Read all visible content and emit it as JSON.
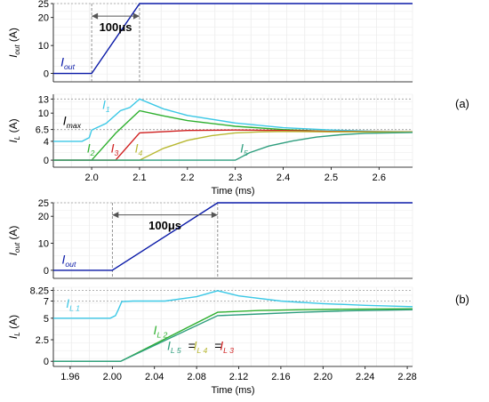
{
  "panel_labels": [
    "(a)",
    "(b)"
  ],
  "chart_data": [
    {
      "type": "line",
      "panel": "(a)",
      "subplot": "top",
      "ylabel": {
        "base": "I",
        "sub": "out",
        "unit": "(A)"
      },
      "ylim": [
        -3,
        25
      ],
      "yticks": [
        0,
        10,
        20,
        25
      ],
      "xlim": [
        1.92,
        2.67
      ],
      "grid": true,
      "series": [
        {
          "name": "I_out",
          "color": "#0a1aa8",
          "x": [
            1.92,
            2.0,
            2.1,
            2.67
          ],
          "y": [
            0,
            0,
            25,
            25
          ]
        }
      ],
      "label_parts": [
        {
          "base": "I",
          "sub": "out",
          "color": "#0a1aa8",
          "x": 1.935,
          "y": 2.5
        }
      ],
      "annotation": {
        "text": "100μs",
        "x0": 2.0,
        "x1": 2.1,
        "y": 20.5,
        "text_y": 15.2
      },
      "vlines": [
        2.0,
        2.1
      ],
      "hline": 25
    },
    {
      "type": "line",
      "panel": "(a)",
      "subplot": "bottom",
      "ylabel": {
        "base": "I",
        "sub": "L",
        "unit": "(A)"
      },
      "ylim": [
        -1.5,
        14
      ],
      "yticks": [
        0,
        4,
        6.5,
        10,
        13
      ],
      "ytick_labels": [
        "0",
        "4",
        "6.5",
        "10",
        "13"
      ],
      "xlabel": "Time (ms)",
      "xlim": [
        1.92,
        2.67
      ],
      "xticks": [
        2.0,
        2.1,
        2.2,
        2.3,
        2.4,
        2.5,
        2.6
      ],
      "xtick_labels": [
        "2.0",
        "2.1",
        "2.2",
        "2.3",
        "2.4",
        "2.5",
        "2.6"
      ],
      "grid": true,
      "hlines": [
        13,
        6.5
      ],
      "series": [
        {
          "name": "I_1",
          "color": "#3cc8e6",
          "x": [
            1.92,
            1.98,
            1.995,
            2.0,
            2.03,
            2.06,
            2.08,
            2.1,
            2.15,
            2.2,
            2.3,
            2.4,
            2.5,
            2.6,
            2.67
          ],
          "y": [
            4.0,
            4.0,
            4.8,
            6.4,
            7.8,
            10.5,
            11.2,
            13.0,
            10.9,
            9.5,
            7.9,
            6.9,
            6.4,
            6.1,
            6.0
          ]
        },
        {
          "name": "I_2",
          "color": "#2fb02f",
          "x": [
            1.92,
            2.0,
            2.05,
            2.1,
            2.15,
            2.2,
            2.3,
            2.4,
            2.5,
            2.6,
            2.67
          ],
          "y": [
            0,
            0,
            5.7,
            10.5,
            9.4,
            8.4,
            7.2,
            6.5,
            6.1,
            6.0,
            6.0
          ]
        },
        {
          "name": "I_3",
          "color": "#d02020",
          "x": [
            1.92,
            2.05,
            2.1,
            2.2,
            2.3,
            2.4,
            2.5,
            2.67
          ],
          "y": [
            0,
            0,
            5.8,
            6.3,
            6.4,
            6.3,
            6.1,
            6.0
          ]
        },
        {
          "name": "I_4",
          "color": "#b8b832",
          "x": [
            1.92,
            2.1,
            2.15,
            2.2,
            2.25,
            2.3,
            2.35,
            2.4,
            2.5,
            2.67
          ],
          "y": [
            0,
            0,
            2.5,
            4.2,
            5.2,
            5.8,
            6.0,
            6.1,
            6.0,
            6.0
          ]
        },
        {
          "name": "I_5",
          "color": "#2e9e7e",
          "x": [
            1.92,
            2.3,
            2.33,
            2.37,
            2.42,
            2.47,
            2.52,
            2.57,
            2.67
          ],
          "y": [
            0,
            0,
            1.6,
            3.0,
            4.1,
            4.9,
            5.4,
            5.7,
            5.9
          ]
        }
      ],
      "label_parts": [
        {
          "base": "I",
          "sub": "max",
          "color": "#000000",
          "x": 1.94,
          "y": 7.5
        },
        {
          "base": "I",
          "sub": "1",
          "color": "#3cc8e6",
          "x": 2.022,
          "y": 10.9
        },
        {
          "base": "I",
          "sub": "2",
          "color": "#2fb02f",
          "x": 1.99,
          "y": 1.6
        },
        {
          "base": "I",
          "sub": "3",
          "color": "#d02020",
          "x": 2.04,
          "y": 1.6
        },
        {
          "base": "I",
          "sub": "4",
          "color": "#b8b832",
          "x": 2.09,
          "y": 1.6
        },
        {
          "base": "I",
          "sub": "5",
          "color": "#2e9e7e",
          "x": 2.31,
          "y": 1.6
        }
      ]
    },
    {
      "type": "line",
      "panel": "(b)",
      "subplot": "top",
      "ylabel": {
        "base": "I",
        "sub": "out",
        "unit": "(A)"
      },
      "ylim": [
        -3,
        25
      ],
      "yticks": [
        0,
        10,
        20,
        25
      ],
      "xlim": [
        1.944,
        2.285
      ],
      "grid": true,
      "series": [
        {
          "name": "I_out",
          "color": "#0a1aa8",
          "x": [
            1.944,
            2.0,
            2.1,
            2.285
          ],
          "y": [
            0,
            0,
            25,
            25
          ]
        }
      ],
      "label_parts": [
        {
          "base": "I",
          "sub": "out",
          "color": "#0a1aa8",
          "x": 1.952,
          "y": 2.5
        }
      ],
      "annotation": {
        "text": "100μs",
        "x0": 2.0,
        "x1": 2.1,
        "y": 20.5,
        "text_y": 15.2
      },
      "vlines": [
        2.0,
        2.1
      ],
      "hline": 25
    },
    {
      "type": "line",
      "panel": "(b)",
      "subplot": "bottom",
      "ylabel": {
        "base": "I",
        "sub": "L",
        "unit": "(A)"
      },
      "ylim": [
        -0.6,
        8.6
      ],
      "yticks": [
        0,
        2.5,
        5,
        7,
        8.25
      ],
      "ytick_labels": [
        "0",
        "2.5",
        "5",
        "7",
        "8.25"
      ],
      "xlabel": "Time (ms)",
      "xlim": [
        1.944,
        2.285
      ],
      "xticks": [
        1.96,
        2.0,
        2.04,
        2.08,
        2.12,
        2.16,
        2.2,
        2.24,
        2.28
      ],
      "xtick_labels": [
        "1.96",
        "2.00",
        "2.04",
        "2.08",
        "2.12",
        "2.16",
        "2.20",
        "2.24",
        "2.28"
      ],
      "grid": true,
      "hlines": [
        8.25,
        7
      ],
      "series": [
        {
          "name": "I_L1",
          "color": "#3cc8e6",
          "x": [
            1.944,
            1.998,
            2.003,
            2.006,
            2.009,
            2.02,
            2.05,
            2.08,
            2.1,
            2.12,
            2.16,
            2.2,
            2.24,
            2.285
          ],
          "y": [
            5,
            5,
            5.3,
            6.1,
            6.95,
            7.0,
            7.0,
            7.5,
            8.2,
            7.6,
            7.0,
            6.7,
            6.5,
            6.35
          ]
        },
        {
          "name": "I_L2",
          "color": "#2fb02f",
          "x": [
            1.944,
            2.008,
            2.1,
            2.14,
            2.18,
            2.22,
            2.285
          ],
          "y": [
            0,
            0,
            5.7,
            5.9,
            6.0,
            6.05,
            6.1
          ]
        },
        {
          "name": "I_L5=I_L4=I_L3",
          "color": "#2e9e7e",
          "x": [
            1.944,
            2.008,
            2.1,
            2.14,
            2.18,
            2.22,
            2.285
          ],
          "y": [
            0,
            0,
            5.3,
            5.5,
            5.7,
            5.85,
            6.0
          ]
        }
      ],
      "label_parts": [
        {
          "base": "I",
          "sub": "L 1",
          "color": "#3cc8e6",
          "x": 1.956,
          "y": 6.2
        },
        {
          "base": "I",
          "sub": "L 2",
          "color": "#2fb02f",
          "x": 2.039,
          "y": 3.1
        },
        {
          "base": "I",
          "sub": "L 5",
          "color": "#2e9e7e",
          "x": 2.052,
          "y": 1.3
        },
        {
          "text": "=",
          "color": "#000000",
          "x": 2.072,
          "y": 1.3
        },
        {
          "base": "I",
          "sub": "L 4",
          "color": "#b8b832",
          "x": 2.077,
          "y": 1.3
        },
        {
          "text": "=",
          "color": "#000000",
          "x": 2.097,
          "y": 1.3
        },
        {
          "base": "I",
          "sub": "L 3",
          "color": "#d02020",
          "x": 2.102,
          "y": 1.3
        }
      ]
    }
  ]
}
